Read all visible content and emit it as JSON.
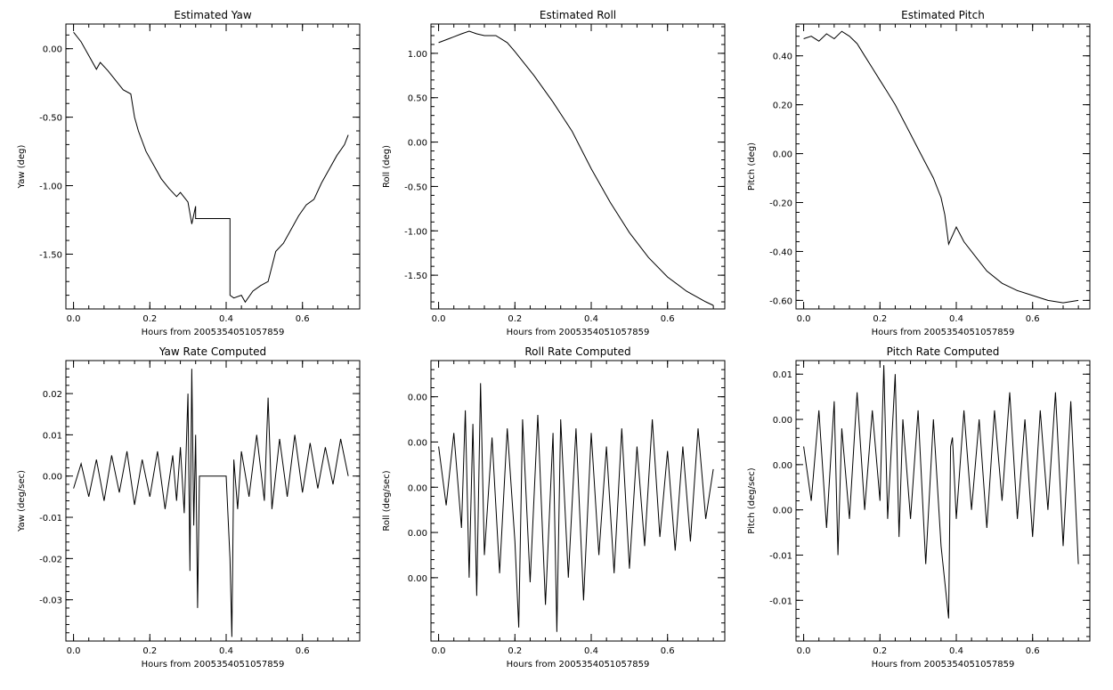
{
  "chart_data": [
    {
      "id": "yaw",
      "type": "line",
      "title": "Estimated Yaw",
      "xlabel": "Hours from 2005354051057859",
      "ylabel": "Yaw (deg)",
      "xlim": [
        -0.02,
        0.75
      ],
      "ylim": [
        -1.9,
        0.18
      ],
      "xticks": [
        {
          "v": 0.0,
          "label": "0.0"
        },
        {
          "v": 0.2,
          "label": "0.2"
        },
        {
          "v": 0.4,
          "label": "0.4"
        },
        {
          "v": 0.6,
          "label": "0.6"
        }
      ],
      "yticks": [
        {
          "v": 0.0,
          "label": "0.00"
        },
        {
          "v": -0.5,
          "label": "-0.50"
        },
        {
          "v": -1.0,
          "label": "-1.00"
        },
        {
          "v": -1.5,
          "label": "-1.50"
        }
      ],
      "x": [
        0.0,
        0.02,
        0.04,
        0.06,
        0.07,
        0.09,
        0.11,
        0.13,
        0.15,
        0.16,
        0.17,
        0.19,
        0.21,
        0.23,
        0.25,
        0.27,
        0.28,
        0.3,
        0.31,
        0.32,
        0.32,
        0.35,
        0.38,
        0.41,
        0.41,
        0.42,
        0.44,
        0.45,
        0.47,
        0.49,
        0.51,
        0.53,
        0.55,
        0.57,
        0.59,
        0.61,
        0.63,
        0.65,
        0.67,
        0.69,
        0.71,
        0.72
      ],
      "y": [
        0.12,
        0.05,
        -0.05,
        -0.15,
        -0.1,
        -0.16,
        -0.23,
        -0.3,
        -0.33,
        -0.5,
        -0.6,
        -0.75,
        -0.85,
        -0.95,
        -1.02,
        -1.08,
        -1.05,
        -1.12,
        -1.28,
        -1.15,
        -1.24,
        -1.24,
        -1.24,
        -1.24,
        -1.8,
        -1.82,
        -1.8,
        -1.85,
        -1.77,
        -1.73,
        -1.7,
        -1.48,
        -1.42,
        -1.32,
        -1.22,
        -1.14,
        -1.1,
        -0.98,
        -0.88,
        -0.78,
        -0.7,
        -0.63
      ]
    },
    {
      "id": "roll",
      "type": "line",
      "title": "Estimated Roll",
      "xlabel": "Hours from 2005354051057859",
      "ylabel": "Roll (deg)",
      "xlim": [
        -0.02,
        0.75
      ],
      "ylim": [
        -1.88,
        1.33
      ],
      "xticks": [
        {
          "v": 0.0,
          "label": "0.0"
        },
        {
          "v": 0.2,
          "label": "0.2"
        },
        {
          "v": 0.4,
          "label": "0.4"
        },
        {
          "v": 0.6,
          "label": "0.6"
        }
      ],
      "yticks": [
        {
          "v": 1.0,
          "label": "1.00"
        },
        {
          "v": 0.5,
          "label": "0.50"
        },
        {
          "v": 0.0,
          "label": "0.00"
        },
        {
          "v": -0.5,
          "label": "-0.50"
        },
        {
          "v": -1.0,
          "label": "-1.00"
        },
        {
          "v": -1.5,
          "label": "-1.50"
        }
      ],
      "x": [
        0.0,
        0.03,
        0.06,
        0.08,
        0.1,
        0.12,
        0.15,
        0.18,
        0.2,
        0.25,
        0.3,
        0.35,
        0.4,
        0.45,
        0.5,
        0.55,
        0.6,
        0.65,
        0.7,
        0.72
      ],
      "y": [
        1.12,
        1.17,
        1.22,
        1.25,
        1.22,
        1.2,
        1.2,
        1.12,
        1.02,
        0.75,
        0.45,
        0.12,
        -0.3,
        -0.68,
        -1.02,
        -1.3,
        -1.52,
        -1.68,
        -1.8,
        -1.84
      ]
    },
    {
      "id": "pitch",
      "type": "line",
      "title": "Estimated Pitch",
      "xlabel": "Hours from 2005354051057859",
      "ylabel": "Pitch (deg)",
      "xlim": [
        -0.02,
        0.75
      ],
      "ylim": [
        -0.635,
        0.53
      ],
      "xticks": [
        {
          "v": 0.0,
          "label": "0.0"
        },
        {
          "v": 0.2,
          "label": "0.2"
        },
        {
          "v": 0.4,
          "label": "0.4"
        },
        {
          "v": 0.6,
          "label": "0.6"
        }
      ],
      "yticks": [
        {
          "v": 0.4,
          "label": "0.40"
        },
        {
          "v": 0.2,
          "label": "0.20"
        },
        {
          "v": 0.0,
          "label": "0.00"
        },
        {
          "v": -0.2,
          "label": "-0.20"
        },
        {
          "v": -0.4,
          "label": "-0.40"
        },
        {
          "v": -0.6,
          "label": "-0.60"
        }
      ],
      "x": [
        0.0,
        0.02,
        0.04,
        0.06,
        0.08,
        0.1,
        0.12,
        0.14,
        0.16,
        0.18,
        0.2,
        0.22,
        0.24,
        0.26,
        0.28,
        0.3,
        0.32,
        0.34,
        0.36,
        0.37,
        0.38,
        0.4,
        0.42,
        0.45,
        0.48,
        0.52,
        0.56,
        0.6,
        0.64,
        0.68,
        0.72
      ],
      "y": [
        0.47,
        0.48,
        0.46,
        0.49,
        0.47,
        0.5,
        0.48,
        0.45,
        0.4,
        0.35,
        0.3,
        0.25,
        0.2,
        0.14,
        0.08,
        0.02,
        -0.04,
        -0.1,
        -0.18,
        -0.25,
        -0.37,
        -0.3,
        -0.36,
        -0.42,
        -0.48,
        -0.53,
        -0.56,
        -0.58,
        -0.6,
        -0.61,
        -0.6
      ]
    },
    {
      "id": "yaw-rate",
      "type": "line",
      "title": "Yaw Rate Computed",
      "xlabel": "Hours from 2005354051057859",
      "ylabel": "Yaw (deg/sec)",
      "xlim": [
        -0.02,
        0.75
      ],
      "ylim": [
        -0.04,
        0.028
      ],
      "xticks": [
        {
          "v": 0.0,
          "label": "0.0"
        },
        {
          "v": 0.2,
          "label": "0.2"
        },
        {
          "v": 0.4,
          "label": "0.4"
        },
        {
          "v": 0.6,
          "label": "0.6"
        }
      ],
      "yticks": [
        {
          "v": 0.02,
          "label": "0.02"
        },
        {
          "v": 0.01,
          "label": "0.01"
        },
        {
          "v": 0.0,
          "label": "0.00"
        },
        {
          "v": -0.01,
          "label": "-0.01"
        },
        {
          "v": -0.02,
          "label": "-0.02"
        },
        {
          "v": -0.03,
          "label": "-0.03"
        }
      ],
      "x": [
        0.0,
        0.02,
        0.04,
        0.06,
        0.08,
        0.1,
        0.12,
        0.14,
        0.16,
        0.18,
        0.2,
        0.22,
        0.24,
        0.26,
        0.27,
        0.28,
        0.29,
        0.3,
        0.305,
        0.31,
        0.315,
        0.32,
        0.325,
        0.33,
        0.36,
        0.4,
        0.41,
        0.415,
        0.42,
        0.43,
        0.44,
        0.46,
        0.48,
        0.5,
        0.51,
        0.52,
        0.54,
        0.56,
        0.58,
        0.6,
        0.62,
        0.64,
        0.66,
        0.68,
        0.7,
        0.72
      ],
      "y": [
        -0.003,
        0.003,
        -0.005,
        0.004,
        -0.006,
        0.005,
        -0.004,
        0.006,
        -0.007,
        0.004,
        -0.005,
        0.006,
        -0.008,
        0.005,
        -0.006,
        0.007,
        -0.009,
        0.02,
        -0.023,
        0.026,
        -0.012,
        0.01,
        -0.032,
        0.0,
        0.0,
        0.0,
        -0.02,
        -0.039,
        0.004,
        -0.008,
        0.006,
        -0.005,
        0.01,
        -0.006,
        0.019,
        -0.008,
        0.009,
        -0.005,
        0.01,
        -0.004,
        0.008,
        -0.003,
        0.007,
        -0.002,
        0.009,
        0.0
      ]
    },
    {
      "id": "roll-rate",
      "type": "line",
      "title": "Roll Rate Computed",
      "xlabel": "Hours from 2005354051057859",
      "ylabel": "Roll (deg/sec)",
      "xlim": [
        -0.02,
        0.75
      ],
      "ylim": [
        -0.0034,
        0.0028
      ],
      "xticks": [
        {
          "v": 0.0,
          "label": "0.0"
        },
        {
          "v": 0.2,
          "label": "0.2"
        },
        {
          "v": 0.4,
          "label": "0.4"
        },
        {
          "v": 0.6,
          "label": "0.6"
        }
      ],
      "yticks": [
        {
          "v": 0.002,
          "label": "0.00"
        },
        {
          "v": 0.001,
          "label": "0.00"
        },
        {
          "v": 0.0,
          "label": "0.00"
        },
        {
          "v": -0.001,
          "label": "0.00"
        },
        {
          "v": -0.002,
          "label": "0.00"
        }
      ],
      "x": [
        0.0,
        0.02,
        0.04,
        0.06,
        0.07,
        0.08,
        0.09,
        0.1,
        0.11,
        0.12,
        0.14,
        0.16,
        0.18,
        0.2,
        0.21,
        0.22,
        0.24,
        0.26,
        0.28,
        0.3,
        0.31,
        0.32,
        0.34,
        0.36,
        0.38,
        0.4,
        0.42,
        0.44,
        0.46,
        0.48,
        0.5,
        0.52,
        0.54,
        0.56,
        0.58,
        0.6,
        0.62,
        0.64,
        0.66,
        0.68,
        0.7,
        0.72
      ],
      "y": [
        0.0009,
        -0.0004,
        0.0012,
        -0.0009,
        0.0017,
        -0.002,
        0.0014,
        -0.0024,
        0.0023,
        -0.0015,
        0.0011,
        -0.0019,
        0.0013,
        -0.0012,
        -0.0031,
        0.0015,
        -0.0021,
        0.0016,
        -0.0026,
        0.0012,
        -0.0032,
        0.0015,
        -0.002,
        0.0013,
        -0.0025,
        0.0012,
        -0.0015,
        0.0009,
        -0.0019,
        0.0013,
        -0.0018,
        0.0009,
        -0.0013,
        0.0015,
        -0.0011,
        0.0008,
        -0.0014,
        0.0009,
        -0.0012,
        0.0013,
        -0.0007,
        0.0004
      ]
    },
    {
      "id": "pitch-rate",
      "type": "line",
      "title": "Pitch Rate Computed",
      "xlabel": "Hours from 2005354051057859",
      "ylabel": "Pitch (deg/sec)",
      "xlim": [
        -0.02,
        0.75
      ],
      "ylim": [
        -0.0195,
        0.0115
      ],
      "xticks": [
        {
          "v": 0.0,
          "label": "0.0"
        },
        {
          "v": 0.2,
          "label": "0.2"
        },
        {
          "v": 0.4,
          "label": "0.4"
        },
        {
          "v": 0.6,
          "label": "0.6"
        }
      ],
      "yticks": [
        {
          "v": 0.01,
          "label": "0.01"
        },
        {
          "v": 0.005,
          "label": "0.00"
        },
        {
          "v": 0.0,
          "label": "0.00"
        },
        {
          "v": -0.005,
          "label": "0.00"
        },
        {
          "v": -0.01,
          "label": "-0.01"
        },
        {
          "v": -0.015,
          "label": "-0.01"
        }
      ],
      "x": [
        0.0,
        0.02,
        0.04,
        0.06,
        0.08,
        0.09,
        0.1,
        0.12,
        0.14,
        0.16,
        0.18,
        0.2,
        0.21,
        0.22,
        0.24,
        0.25,
        0.26,
        0.28,
        0.3,
        0.32,
        0.34,
        0.36,
        0.38,
        0.385,
        0.39,
        0.4,
        0.42,
        0.44,
        0.46,
        0.48,
        0.5,
        0.52,
        0.54,
        0.56,
        0.58,
        0.6,
        0.62,
        0.64,
        0.66,
        0.68,
        0.7,
        0.72
      ],
      "y": [
        0.002,
        -0.004,
        0.006,
        -0.007,
        0.007,
        -0.01,
        0.004,
        -0.006,
        0.008,
        -0.005,
        0.006,
        -0.004,
        0.011,
        -0.006,
        0.01,
        -0.008,
        0.005,
        -0.006,
        0.006,
        -0.011,
        0.005,
        -0.009,
        -0.017,
        0.002,
        0.003,
        -0.006,
        0.006,
        -0.005,
        0.005,
        -0.007,
        0.006,
        -0.004,
        0.008,
        -0.006,
        0.005,
        -0.008,
        0.006,
        -0.005,
        0.008,
        -0.009,
        0.007,
        -0.011
      ]
    }
  ]
}
